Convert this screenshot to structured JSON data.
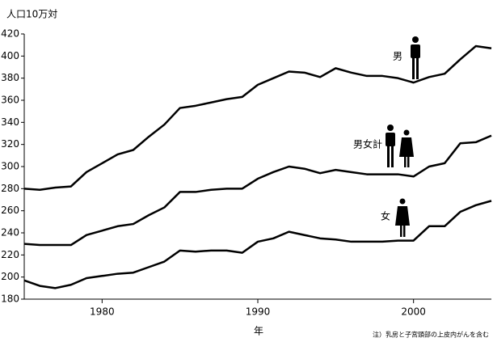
{
  "chart_data": {
    "type": "line",
    "y_label": "人口10万対",
    "x_label": "年",
    "note": "注）乳房と子宮頸部の上皮内がんを含む",
    "x": [
      1975,
      1976,
      1977,
      1978,
      1979,
      1980,
      1981,
      1982,
      1983,
      1984,
      1985,
      1986,
      1987,
      1988,
      1989,
      1990,
      1991,
      1992,
      1993,
      1994,
      1995,
      1996,
      1997,
      1998,
      1999,
      2000,
      2001,
      2002,
      2003,
      2004,
      2005
    ],
    "xlim": [
      1975,
      2005
    ],
    "xticks": [
      1980,
      1990,
      2000
    ],
    "ylim": [
      180,
      420
    ],
    "yticks": [
      180,
      200,
      220,
      240,
      260,
      280,
      300,
      320,
      340,
      360,
      380,
      400,
      420
    ],
    "grid": false,
    "series": [
      {
        "name": "男",
        "color": "#000000",
        "values": [
          280,
          279,
          281,
          282,
          295,
          303,
          311,
          315,
          327,
          338,
          353,
          355,
          358,
          361,
          363,
          374,
          380,
          386,
          385,
          381,
          389,
          385,
          382,
          382,
          380,
          376,
          381,
          384,
          397,
          409,
          407
        ]
      },
      {
        "name": "男女計",
        "color": "#000000",
        "values": [
          230,
          229,
          229,
          229,
          238,
          242,
          246,
          248,
          256,
          263,
          277,
          277,
          279,
          280,
          280,
          289,
          295,
          300,
          298,
          294,
          297,
          295,
          293,
          293,
          293,
          291,
          300,
          303,
          321,
          322,
          328
        ]
      },
      {
        "name": "女",
        "color": "#000000",
        "values": [
          197,
          192,
          190,
          193,
          199,
          201,
          203,
          204,
          209,
          214,
          224,
          223,
          224,
          224,
          222,
          232,
          235,
          241,
          238,
          235,
          234,
          232,
          232,
          232,
          233,
          233,
          246,
          246,
          259,
          265,
          269
        ]
      }
    ]
  }
}
